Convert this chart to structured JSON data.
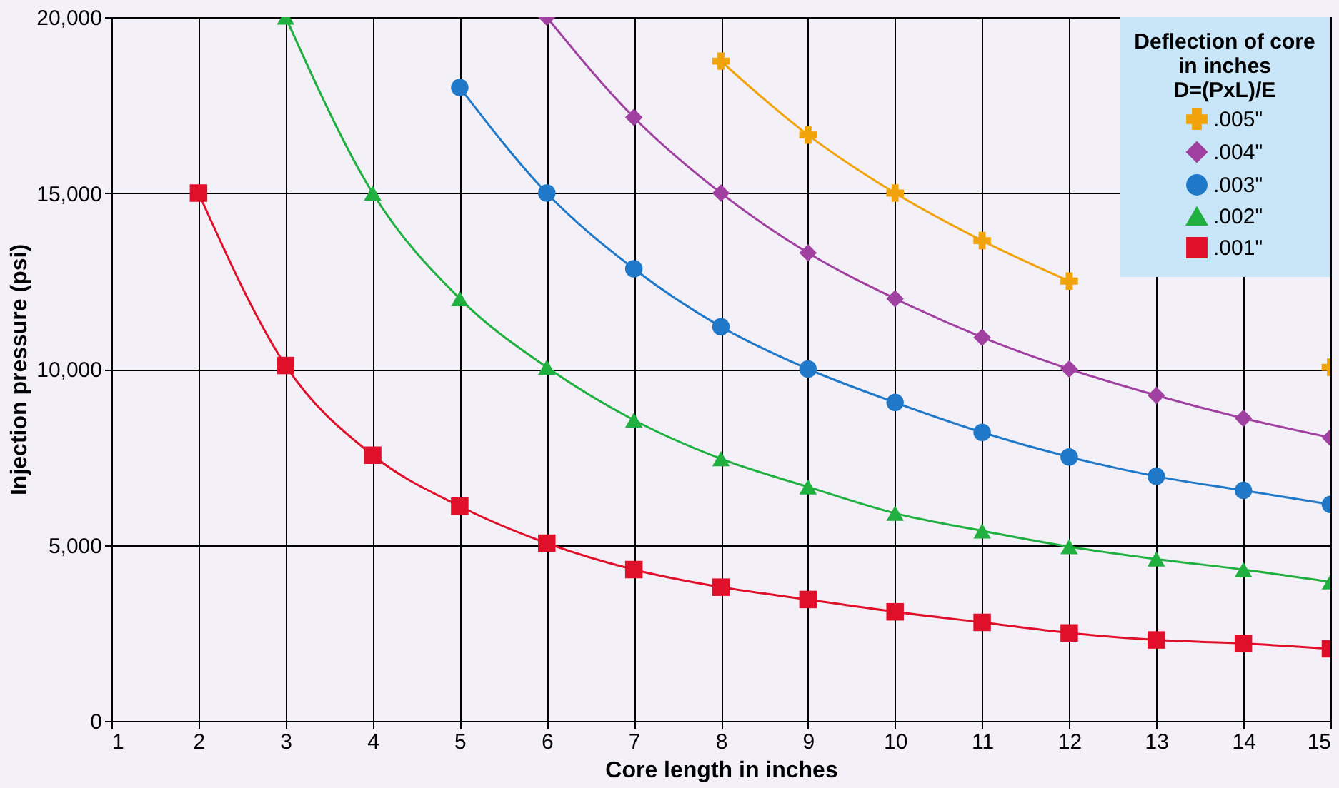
{
  "chart_data": {
    "type": "line",
    "xlabel": "Core length in inches",
    "ylabel": "Injection pressure (psi)",
    "legend_title": "Deflection of core\nin inches\nD=(PxL)/E",
    "legend": "top right",
    "grid": true,
    "xlim": [
      1,
      15
    ],
    "ylim": [
      0,
      20000
    ],
    "xticks": [
      1,
      2,
      3,
      4,
      5,
      6,
      7,
      8,
      9,
      10,
      11,
      12,
      13,
      14,
      15
    ],
    "yticks": [
      {
        "value": 0,
        "label": "0"
      },
      {
        "value": 5000,
        "label": "5,000"
      },
      {
        "value": 10000,
        "label": "10,000"
      },
      {
        "value": 15000,
        "label": "15,000"
      },
      {
        "value": 20000,
        "label": "20,000"
      }
    ],
    "series": [
      {
        "name": ".005\"",
        "color": "#f0a30a",
        "marker": "cross",
        "x": [
          8,
          9,
          10,
          11,
          12,
          13,
          14,
          15
        ],
        "values": [
          18750,
          16650,
          15000,
          13650,
          12500,
          null,
          null,
          10050
        ]
      },
      {
        "name": ".004\"",
        "color": "#a040a0",
        "marker": "diamond",
        "x": [
          6,
          7,
          8,
          9,
          10,
          11,
          12,
          13,
          14,
          15
        ],
        "values": [
          20000,
          17150,
          15000,
          13300,
          12000,
          10900,
          10000,
          9250,
          8600,
          8050
        ]
      },
      {
        "name": ".003\"",
        "color": "#1f78c8",
        "marker": "circle",
        "x": [
          5,
          6,
          7,
          8,
          9,
          10,
          11,
          12,
          13,
          14,
          15
        ],
        "values": [
          18000,
          15000,
          12850,
          11200,
          10000,
          9050,
          8200,
          7500,
          6950,
          6550,
          6150
        ]
      },
      {
        "name": ".002\"",
        "color": "#20b040",
        "marker": "triangle",
        "x": [
          3,
          4,
          5,
          6,
          7,
          8,
          9,
          10,
          11,
          12,
          13,
          14,
          15
        ],
        "values": [
          20000,
          15000,
          12000,
          10050,
          8550,
          7450,
          6650,
          5900,
          5400,
          4950,
          4600,
          4300,
          3950
        ]
      },
      {
        "name": ".001\"",
        "color": "#e0102a",
        "marker": "square",
        "x": [
          2,
          3,
          4,
          5,
          6,
          7,
          8,
          9,
          10,
          11,
          12,
          13,
          14,
          15
        ],
        "values": [
          15000,
          10100,
          7550,
          6100,
          5050,
          4300,
          3800,
          3450,
          3100,
          2800,
          2500,
          2300,
          2200,
          2050
        ]
      }
    ]
  }
}
